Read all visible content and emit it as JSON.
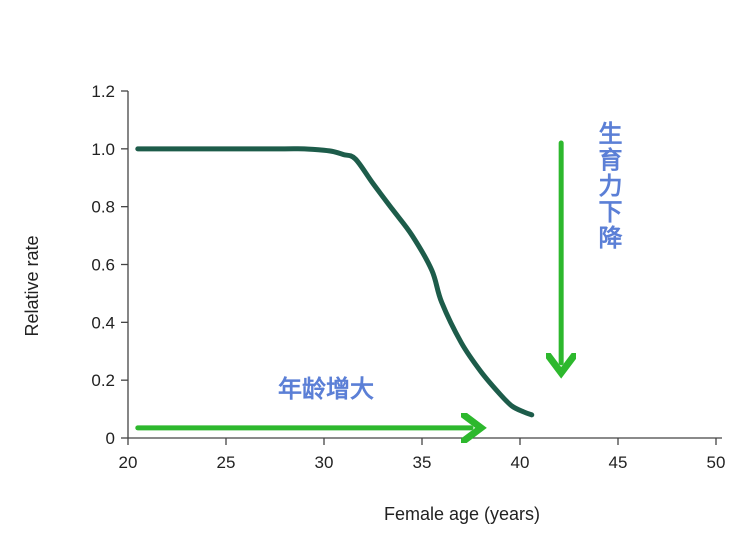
{
  "chart_data": {
    "type": "line",
    "title": "",
    "xlabel": "Female age (years)",
    "ylabel": "Relative rate",
    "xlim": [
      20,
      50
    ],
    "ylim": [
      0,
      1.2
    ],
    "x_ticks": [
      20,
      25,
      30,
      35,
      40,
      45,
      50
    ],
    "x_tick_labels": [
      "20",
      "25",
      "30",
      "35",
      "40",
      "45",
      "50"
    ],
    "y_ticks": [
      0,
      0.2,
      0.4,
      0.6,
      0.8,
      1.0,
      1.2
    ],
    "y_tick_labels": [
      "0",
      "0.2",
      "0.4",
      "0.6",
      "0.8",
      "1.0",
      "1.2"
    ],
    "grid": false,
    "series": [
      {
        "color": "#1d5c4a",
        "x": [
          20.5,
          22,
          24,
          26,
          28,
          29,
          30,
          30.5,
          31,
          31.6,
          32.5,
          33.5,
          34.5,
          35.5,
          36,
          37,
          38,
          39,
          39.6,
          40.2,
          40.6
        ],
        "y": [
          1.0,
          1.0,
          1.0,
          1.0,
          1.0,
          1.0,
          0.995,
          0.99,
          0.98,
          0.965,
          0.88,
          0.79,
          0.7,
          0.58,
          0.47,
          0.33,
          0.23,
          0.15,
          0.11,
          0.09,
          0.08
        ]
      }
    ],
    "annotations": [
      {
        "text": "年龄增大",
        "color": "#5b7fd6",
        "position": "above-horizontal-arrow"
      },
      {
        "text": "生育力下降",
        "color": "#5b7fd6",
        "position": "right-of-vertical-arrow",
        "orientation": "vertical"
      }
    ],
    "arrows": [
      {
        "direction": "right",
        "color": "#2db82d",
        "from": [
          20.5,
          0.035
        ],
        "to": [
          37.5,
          0.035
        ]
      },
      {
        "direction": "down",
        "color": "#2db82d",
        "from": [
          42.1,
          1.02
        ],
        "to": [
          42.1,
          0.26
        ]
      }
    ]
  }
}
